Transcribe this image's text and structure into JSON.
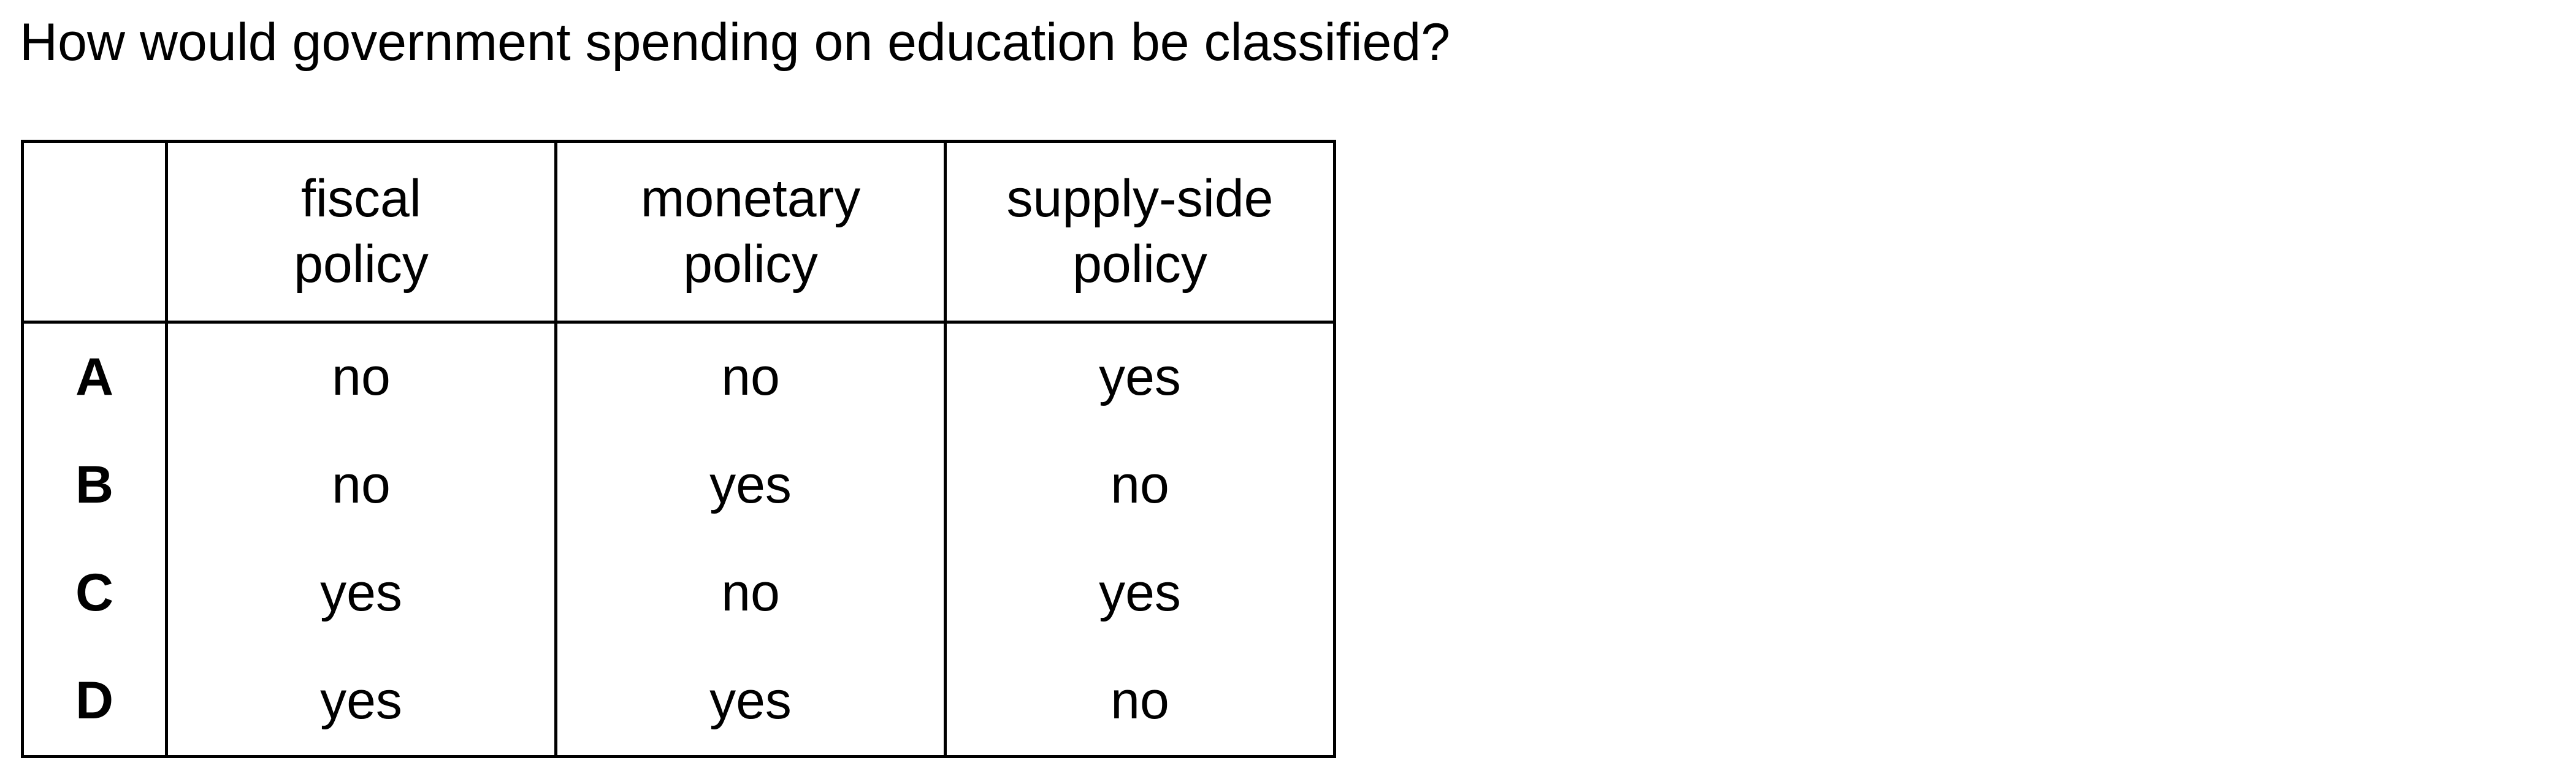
{
  "question": "How would government spending on education be classified?",
  "table": {
    "headers": [
      [
        "fiscal",
        "policy"
      ],
      [
        "monetary",
        "policy"
      ],
      [
        "supply-side",
        "policy"
      ]
    ],
    "rows": [
      {
        "letter": "A",
        "values": [
          "no",
          "no",
          "yes"
        ]
      },
      {
        "letter": "B",
        "values": [
          "no",
          "yes",
          "no"
        ]
      },
      {
        "letter": "C",
        "values": [
          "yes",
          "no",
          "yes"
        ]
      },
      {
        "letter": "D",
        "values": [
          "yes",
          "yes",
          "no"
        ]
      }
    ]
  }
}
